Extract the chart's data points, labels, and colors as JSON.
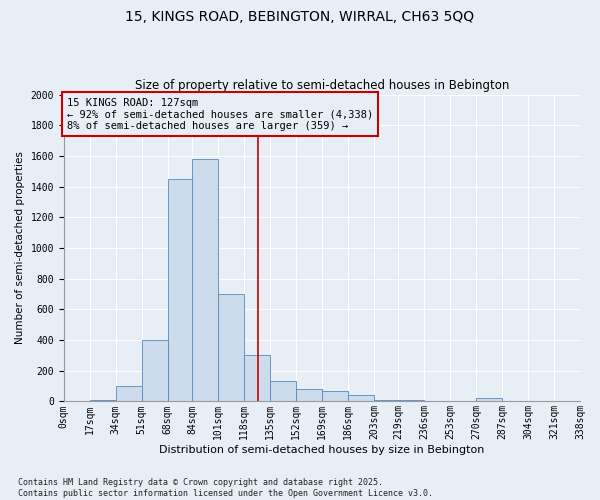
{
  "title1": "15, KINGS ROAD, BEBINGTON, WIRRAL, CH63 5QQ",
  "title2": "Size of property relative to semi-detached houses in Bebington",
  "xlabel": "Distribution of semi-detached houses by size in Bebington",
  "ylabel": "Number of semi-detached properties",
  "footnote": "Contains HM Land Registry data © Crown copyright and database right 2025.\nContains public sector information licensed under the Open Government Licence v3.0.",
  "property_size": 127,
  "property_label": "15 KINGS ROAD: 127sqm",
  "annotation_line1": "← 92% of semi-detached houses are smaller (4,338)",
  "annotation_line2": "8% of semi-detached houses are larger (359) →",
  "bin_edges": [
    0,
    17,
    34,
    51,
    68,
    84,
    101,
    118,
    135,
    152,
    169,
    186,
    203,
    219,
    236,
    253,
    270,
    287,
    304,
    321,
    338
  ],
  "bin_labels": [
    "0sqm",
    "17sqm",
    "34sqm",
    "51sqm",
    "68sqm",
    "84sqm",
    "101sqm",
    "118sqm",
    "135sqm",
    "152sqm",
    "169sqm",
    "186sqm",
    "203sqm",
    "219sqm",
    "236sqm",
    "253sqm",
    "270sqm",
    "287sqm",
    "304sqm",
    "321sqm",
    "338sqm"
  ],
  "bar_heights": [
    3,
    10,
    100,
    400,
    1450,
    1580,
    700,
    300,
    135,
    80,
    70,
    40,
    10,
    10,
    5,
    3,
    20,
    3,
    3,
    3
  ],
  "bar_color": "#ccdcec",
  "bar_edge_color": "#5588bb",
  "line_color": "#cc0000",
  "bg_color": "#e8eef5",
  "grid_color": "#ffffff",
  "ylim": [
    0,
    2000
  ],
  "yticks": [
    0,
    200,
    400,
    600,
    800,
    1000,
    1200,
    1400,
    1600,
    1800,
    2000
  ],
  "title1_fontsize": 10,
  "title2_fontsize": 8.5,
  "xlabel_fontsize": 8,
  "ylabel_fontsize": 7.5,
  "tick_fontsize": 7,
  "annot_fontsize": 7.5,
  "footnote_fontsize": 6
}
